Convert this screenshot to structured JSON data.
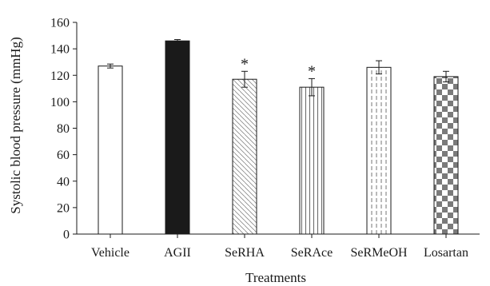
{
  "chart_data": {
    "type": "bar",
    "title": "",
    "xlabel": "Treatments",
    "ylabel": "Systolic blood pressure (mmHg)",
    "ylim": [
      0,
      160
    ],
    "yticks": [
      0,
      20,
      40,
      60,
      80,
      100,
      120,
      140,
      160
    ],
    "grid": false,
    "legend": "none",
    "categories": [
      "Vehicle",
      "AGII",
      "SeRHA",
      "SeRAce",
      "SeRMeOH",
      "Losartan"
    ],
    "values": [
      127,
      146,
      117,
      111,
      126,
      119
    ],
    "errors": [
      1.5,
      1,
      6,
      6.5,
      5,
      4
    ],
    "annotations": [
      "",
      "",
      "*",
      "*",
      "",
      ""
    ],
    "fills": [
      "white",
      "solid-black",
      "diagonal-hatch",
      "vertical-lines",
      "dashed-vertical-lines",
      "checkerboard"
    ]
  }
}
